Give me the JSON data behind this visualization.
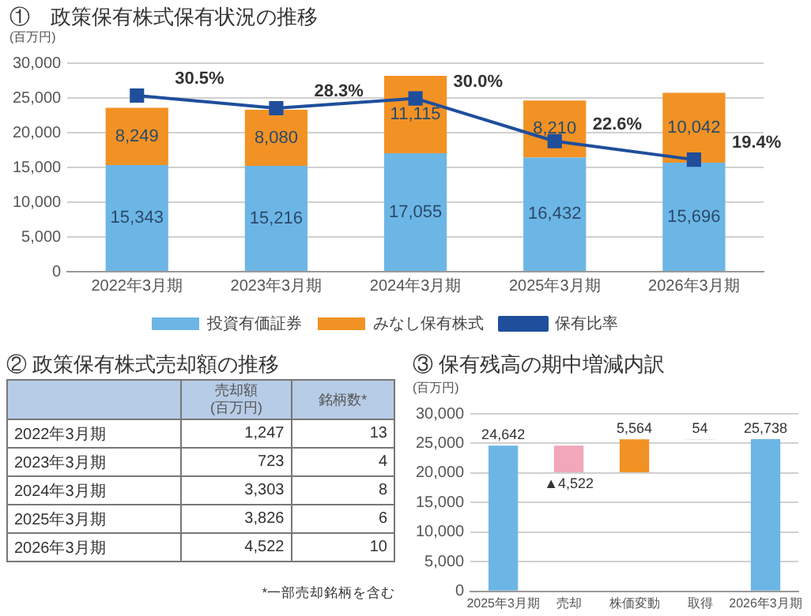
{
  "chart_data": [
    {
      "type": "bar",
      "title": "①　政策保有株式保有状況の推移",
      "ylabel": "(百万円)",
      "stacked": true,
      "grid": "y",
      "legend": "bottom",
      "marker": "square",
      "categories": [
        "2022年3月期",
        "2023年3月期",
        "2024年3月期",
        "2025年3月期",
        "2026年3月期"
      ],
      "ylim": [
        0,
        30000
      ],
      "yticks": [
        {
          "value": 0,
          "label": "0"
        },
        {
          "value": 5000,
          "label": "5,000"
        },
        {
          "value": 10000,
          "label": "10,000"
        },
        {
          "value": 15000,
          "label": "15,000"
        },
        {
          "value": 20000,
          "label": "20,000"
        },
        {
          "value": 25000,
          "label": "25,000"
        },
        {
          "value": 30000,
          "label": "30,000"
        }
      ],
      "y2lim": [
        0,
        36.1
      ],
      "series": [
        {
          "name": "投資有価証券",
          "color": "#6cb6e6",
          "values": [
            15343,
            15216,
            17055,
            16432,
            15696
          ],
          "value_labels": [
            "15,343",
            "15,216",
            "17,055",
            "16,432",
            "15,696"
          ]
        },
        {
          "name": "みなし保有株式",
          "color": "#f29224",
          "values": [
            8249,
            8080,
            11115,
            8210,
            10042
          ],
          "value_labels": [
            "8,249",
            "8,080",
            "11,115",
            "8,210",
            "10,042"
          ]
        },
        {
          "name": "保有比率",
          "type": "line",
          "axis": "y2",
          "color": "#1f4e9c",
          "values": [
            30.5,
            28.3,
            30.0,
            22.6,
            19.4
          ],
          "value_labels": [
            "30.5%",
            "28.3%",
            "30.0%",
            "22.6%",
            "19.4%"
          ]
        }
      ]
    },
    {
      "type": "other",
      "title": "② 政策保有株式売却額の推移",
      "data_labels": true,
      "categories": [
        "2022年3月期",
        "2023年3月期",
        "2024年3月期",
        "2025年3月期",
        "2026年3月期"
      ],
      "series": [
        {
          "name": "売却額\n(百万円)",
          "values": [
            1247,
            723,
            3303,
            3826,
            4522
          ],
          "value_labels": [
            "1,247",
            "723",
            "3,303",
            "3,826",
            "4,522"
          ]
        },
        {
          "name": "銘柄数*",
          "values": [
            13,
            4,
            8,
            6,
            10
          ]
        }
      ],
      "annotations": [
        "*一部売却銘柄を含む"
      ]
    },
    {
      "type": "bar",
      "title": "③ 保有残高の期中増減内訳",
      "ylabel": "(百万円)",
      "grid": "y",
      "categories": [
        "2025年3月期",
        "売却",
        "株価変動",
        "取得",
        "2026年3月期"
      ],
      "values": [
        24642,
        -4522,
        5564,
        54,
        25738
      ],
      "base": [
        0,
        24642,
        20120,
        25684,
        0
      ],
      "colors": [
        "#6cb6e6",
        "#f2a7bb",
        "#f29224",
        "#b0b0b0",
        "#6cb6e6"
      ],
      "value_labels": [
        "24,642",
        "▲4,522",
        "5,564",
        "54",
        "25,738"
      ],
      "ylim": [
        0,
        30000
      ],
      "yticks": [
        {
          "value": 0,
          "label": "0"
        },
        {
          "value": 5000,
          "label": "5,000"
        },
        {
          "value": 10000,
          "label": "10,000"
        },
        {
          "value": 15000,
          "label": "15,000"
        },
        {
          "value": 20000,
          "label": "20,000"
        },
        {
          "value": 25000,
          "label": "25,000"
        },
        {
          "value": 30000,
          "label": "30,000"
        }
      ]
    }
  ]
}
